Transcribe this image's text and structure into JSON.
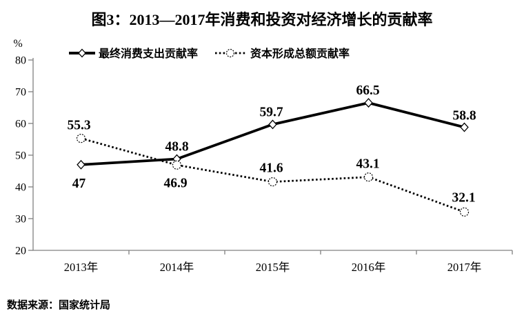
{
  "figure": {
    "title": "图3：2013—2017年消费和投资对经济增长的贡献率",
    "source_note": "数据来源：国家统计局",
    "unit_label": "%"
  },
  "chart_data": {
    "type": "line",
    "title": "图3：2013—2017年消费和投资对经济增长的贡献率",
    "categories": [
      "2013年",
      "2014年",
      "2015年",
      "2016年",
      "2017年"
    ],
    "series": [
      {
        "name": "最终消费支出贡献率",
        "line_style": "solid",
        "marker": "diamond",
        "values": [
          47,
          48.8,
          59.7,
          66.5,
          58.8
        ],
        "data_labels": [
          "47",
          "48.8",
          "59.7",
          "66.5",
          "58.8"
        ]
      },
      {
        "name": "资本形成总额贡献率",
        "line_style": "dotted",
        "marker": "circle",
        "values": [
          55.3,
          46.9,
          41.6,
          43.1,
          32.1
        ],
        "data_labels": [
          "55.3",
          "46.9",
          "41.6",
          "43.1",
          "32.1"
        ]
      }
    ],
    "xlabel": "",
    "ylabel": "%",
    "ylim": [
      20,
      80
    ],
    "y_ticks": [
      80,
      70,
      60,
      50,
      40,
      30,
      20
    ],
    "legend_position": "top",
    "grid": false,
    "colors": {
      "series": "#000000",
      "axis": "#808080",
      "background": "#ffffff"
    }
  }
}
